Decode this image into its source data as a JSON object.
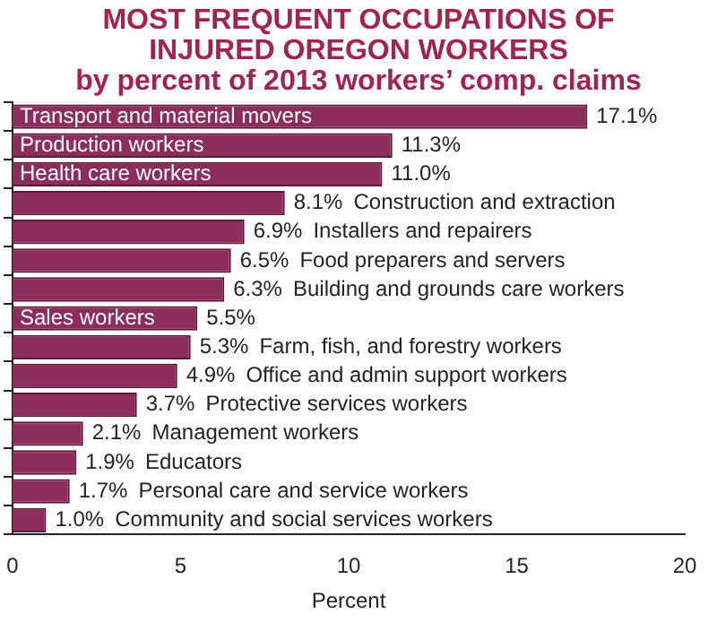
{
  "chart_data": {
    "type": "bar",
    "orientation": "horizontal",
    "title": "MOST FREQUENT OCCUPATIONS OF INJURED OREGON WORKERS",
    "subtitle": "by percent of 2013 workers’ comp. claims",
    "xlabel": "Percent",
    "categories": [
      "Transport and material movers",
      "Production workers",
      "Health care workers",
      "Construction and extraction",
      "Installers and repairers",
      "Food preparers and servers",
      "Building and grounds care workers",
      "Sales workers",
      "Farm, fish, and forestry workers",
      "Office and admin support workers",
      "Protective services workers",
      "Management workers",
      "Educators",
      "Personal care and service workers",
      "Community and social services workers"
    ],
    "values": [
      17.1,
      11.3,
      11.0,
      8.1,
      6.9,
      6.5,
      6.3,
      5.5,
      5.3,
      4.9,
      3.7,
      2.1,
      1.9,
      1.7,
      1.0
    ],
    "value_labels": [
      "17.1%",
      "11.3%",
      "11.0%",
      "8.1%",
      "6.9%",
      "6.5%",
      "6.3%",
      "5.5%",
      "5.3%",
      "4.9%",
      "3.7%",
      "2.1%",
      "1.9%",
      "1.7%",
      "1.0%"
    ],
    "color": "#8c2d5c",
    "xlim": [
      0,
      20
    ],
    "xticks": [
      0,
      5,
      10,
      15,
      20
    ],
    "grid": false,
    "legend": false,
    "tick_labels": "x"
  }
}
